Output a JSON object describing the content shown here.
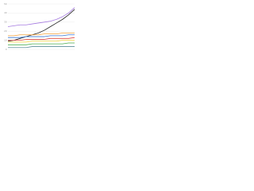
{
  "chart_data": {
    "type": "line",
    "categories": [
      null,
      null,
      null,
      null,
      null,
      null,
      null,
      null,
      null,
      null,
      null,
      null
    ],
    "series": [
      {
        "color": "#a57be0",
        "values": [
          25,
          26,
          27,
          27,
          28,
          29,
          30,
          31,
          33,
          36,
          40,
          46
        ]
      },
      {
        "color": "#222222",
        "values": [
          9,
          10,
          12,
          14,
          16,
          18,
          21,
          25,
          29,
          33,
          38,
          44
        ]
      },
      {
        "color": "#f4a13a",
        "values": [
          15,
          15,
          16,
          16,
          16,
          16,
          17,
          17,
          17,
          18,
          18,
          18
        ]
      },
      {
        "color": "#3a78d4",
        "values": [
          13,
          13,
          13,
          14,
          14,
          14,
          14,
          15,
          15,
          15,
          16,
          16
        ]
      },
      {
        "color": "#e0483c",
        "values": [
          10,
          10,
          10,
          11,
          11,
          11,
          11,
          12,
          12,
          12,
          12,
          13
        ]
      },
      {
        "color": "#f2d13a",
        "values": [
          8,
          8,
          8,
          8,
          9,
          9,
          9,
          9,
          9,
          10,
          10,
          10
        ]
      },
      {
        "color": "#4caf50",
        "values": [
          5,
          5,
          5,
          5,
          6,
          6,
          6,
          6,
          6,
          6,
          7,
          7
        ]
      },
      {
        "color": "#5f8f9a",
        "values": [
          2,
          2,
          2,
          2,
          3,
          3,
          3,
          3,
          3,
          3,
          3,
          3
        ]
      }
    ],
    "ylim": [
      0,
      50
    ],
    "yticks": [
      0,
      10,
      20,
      30,
      40,
      50
    ],
    "grid": true
  }
}
